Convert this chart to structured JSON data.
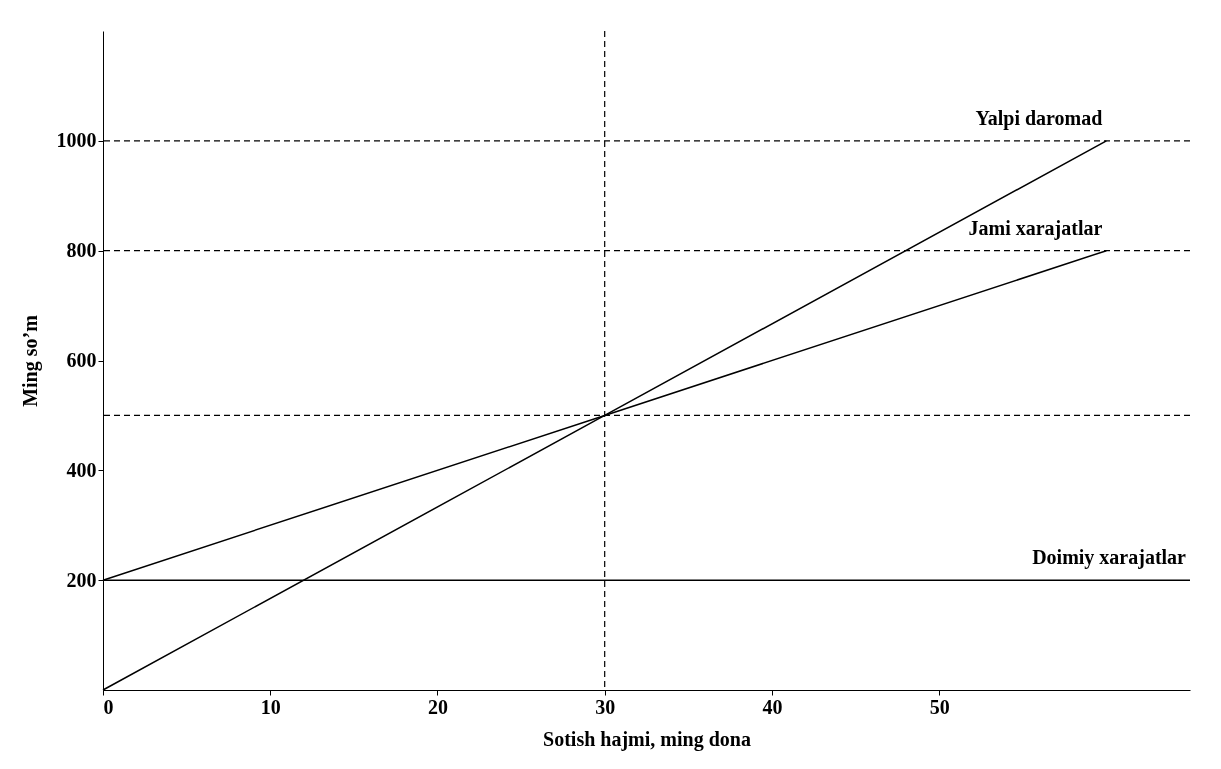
{
  "chart_data": {
    "type": "line",
    "xlabel": "Sotish hajmi, ming dona",
    "ylabel": "Ming so’m",
    "xlim": [
      0,
      65
    ],
    "ylim": [
      0,
      1200
    ],
    "xticks": [
      0,
      10,
      20,
      30,
      40,
      50
    ],
    "yticks": [
      200,
      400,
      600,
      800,
      1000
    ],
    "series": [
      {
        "name": "Yalpi daromad",
        "color": "#000000",
        "x": [
          0,
          30,
          60
        ],
        "values": [
          0,
          500,
          1000
        ]
      },
      {
        "name": "Jami xarajatlar",
        "color": "#000000",
        "x": [
          0,
          30,
          60
        ],
        "values": [
          200,
          500,
          800
        ]
      },
      {
        "name": "Doimiy xarajatlar",
        "color": "#000000",
        "x": [
          0,
          65
        ],
        "values": [
          200,
          200
        ]
      }
    ],
    "ref_lines": [
      {
        "axis": "y",
        "value": 1000,
        "line_style": "dashed"
      },
      {
        "axis": "y",
        "value": 800,
        "line_style": "dashed"
      },
      {
        "axis": "y",
        "value": 500,
        "line_style": "dashed"
      },
      {
        "axis": "x",
        "value": 30,
        "line_style": "dashed"
      }
    ],
    "grid": false,
    "legend": false
  }
}
